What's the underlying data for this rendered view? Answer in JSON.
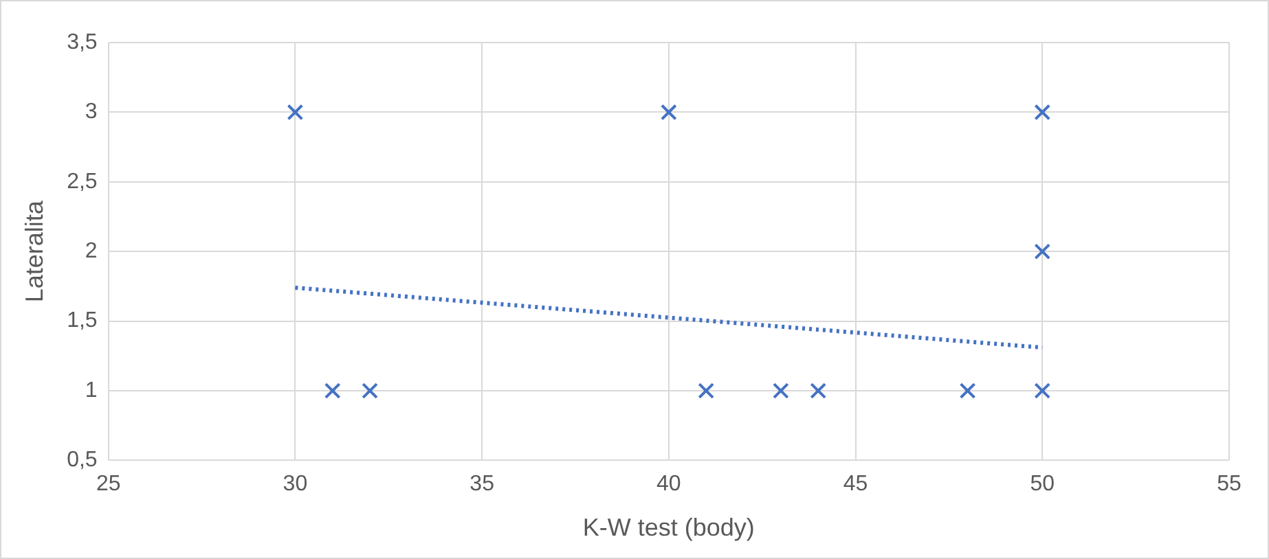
{
  "chart_data": {
    "type": "scatter",
    "xlabel": "K-W test (body)",
    "ylabel": "Lateralita",
    "xlim": [
      25,
      55
    ],
    "xticks": [
      25,
      30,
      35,
      40,
      45,
      50,
      55
    ],
    "ylim": [
      0.5,
      3.5
    ],
    "yticks": [
      {
        "value": 0.5,
        "label": "0,5"
      },
      1,
      {
        "value": 1.5,
        "label": "1,5"
      },
      2,
      {
        "value": 2.5,
        "label": "2,5"
      },
      3,
      {
        "value": 3.5,
        "label": "3,5"
      }
    ],
    "grid": true,
    "legend": false,
    "series": [
      {
        "color": "#4472c4",
        "marker": "cross",
        "x": [
          30,
          40,
          50,
          50,
          31,
          32,
          41,
          43,
          44,
          48,
          50
        ],
        "values": [
          3,
          3,
          3,
          2,
          1,
          1,
          1,
          1,
          1,
          1,
          1
        ]
      },
      {
        "type": "line",
        "color": "#4472c4",
        "marker": "none",
        "line_style": "dotted",
        "x": [
          30,
          50
        ],
        "values": [
          1.74,
          1.31
        ]
      }
    ]
  }
}
